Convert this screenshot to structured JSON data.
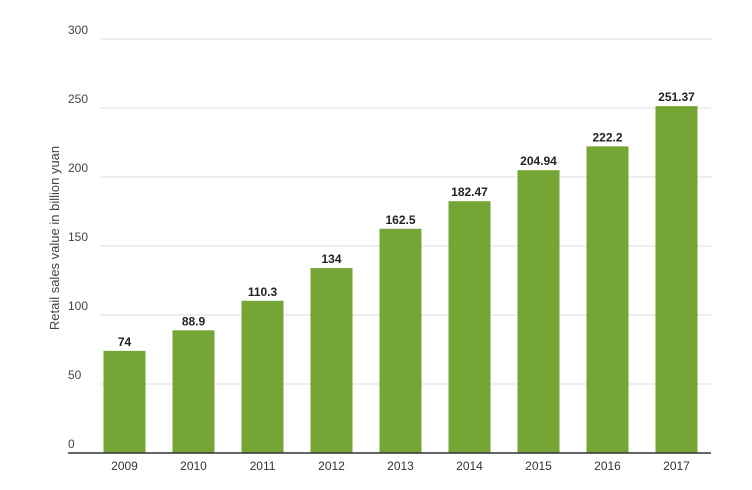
{
  "chart_data": {
    "type": "bar",
    "categories": [
      "2009",
      "2010",
      "2011",
      "2012",
      "2013",
      "2014",
      "2015",
      "2016",
      "2017"
    ],
    "series": [
      {
        "values": [
          74,
          88.9,
          110.3,
          134,
          162.5,
          182.47,
          204.94,
          222.2,
          251.37
        ],
        "labels": [
          "74",
          "88.9",
          "110.3",
          "134",
          "162.5",
          "182.47",
          "204.94",
          "222.2",
          "251.37"
        ],
        "color": "#74a535"
      }
    ],
    "title": "",
    "xlabel": "",
    "ylabel": "Retail sales value in billion yuan",
    "ylim": [
      0,
      300
    ],
    "yticks": [
      0,
      50,
      100,
      150,
      200,
      250,
      300
    ],
    "grid": true,
    "legend": "none"
  }
}
